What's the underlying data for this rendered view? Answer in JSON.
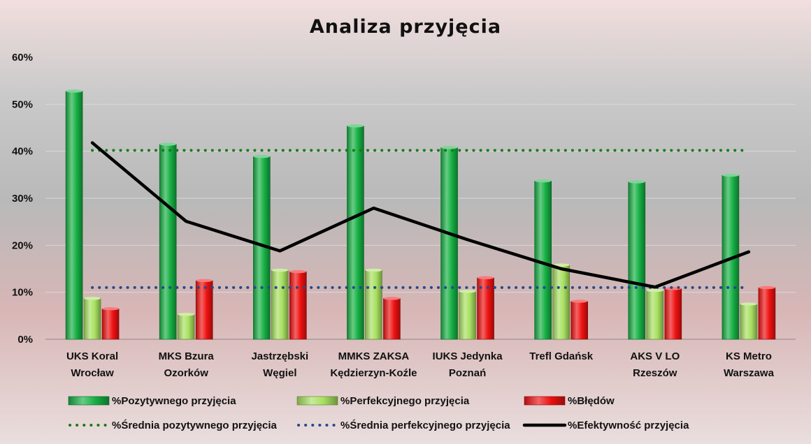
{
  "colors": {
    "positive": "#16b044",
    "perfect": "#a8e060",
    "errors": "#ee1111",
    "avg_positive": "#1a7a1a",
    "avg_perfect": "#244a8c",
    "efficiency": "#000000"
  },
  "chart_data": {
    "type": "bar",
    "title": "Analiza przyjęcia",
    "categories": [
      [
        "UKS Koral",
        "Wrocław"
      ],
      [
        "MKS Bzura",
        "Ozorków"
      ],
      [
        "Jastrzębski",
        "Węgiel"
      ],
      [
        "MMKS ZAKSA",
        "Kędzierzyn-Koźle"
      ],
      [
        "IUKS Jedynka",
        "Poznań"
      ],
      [
        "Trefl Gdańsk"
      ],
      [
        "AKS V LO",
        "Rzeszów"
      ],
      [
        "KS Metro",
        "Warszawa"
      ]
    ],
    "ylim": [
      0,
      60
    ],
    "yticks": [
      0,
      10,
      20,
      30,
      40,
      50,
      60
    ],
    "ytick_suffix": "%",
    "grid": true,
    "legend_position": "bottom",
    "series": [
      {
        "name": "%Pozytywnego przyjęcia",
        "kind": "bar",
        "color_key": "positive",
        "values": [
          52.8,
          41.5,
          38.9,
          45.4,
          40.8,
          33.7,
          33.5,
          34.9
        ]
      },
      {
        "name": "%Perfekcyjnego przyjęcia",
        "kind": "bar",
        "color_key": "perfect",
        "values": [
          8.7,
          5.3,
          14.7,
          14.7,
          10.2,
          15.8,
          10.4,
          7.5
        ]
      },
      {
        "name": "%Błędów",
        "kind": "bar",
        "color_key": "errors",
        "values": [
          6.5,
          12.5,
          14.4,
          8.7,
          13.1,
          8.1,
          10.8,
          11.0
        ]
      },
      {
        "name": "%Średnia pozytywnego przyjęcia",
        "kind": "dotted",
        "color_key": "avg_positive",
        "values": [
          40.2,
          40.2,
          40.2,
          40.2,
          40.2,
          40.2,
          40.2,
          40.2
        ]
      },
      {
        "name": "%Średnia perfekcyjnego przyjęcia",
        "kind": "dotted",
        "color_key": "avg_perfect",
        "values": [
          11.0,
          11.0,
          11.0,
          11.0,
          11.0,
          11.0,
          11.0,
          11.0
        ]
      },
      {
        "name": "%Efektywność przyjęcia",
        "kind": "line",
        "color_key": "efficiency",
        "values": [
          41.8,
          25.1,
          18.8,
          27.9,
          21.2,
          15.0,
          11.1,
          18.6
        ]
      }
    ]
  }
}
